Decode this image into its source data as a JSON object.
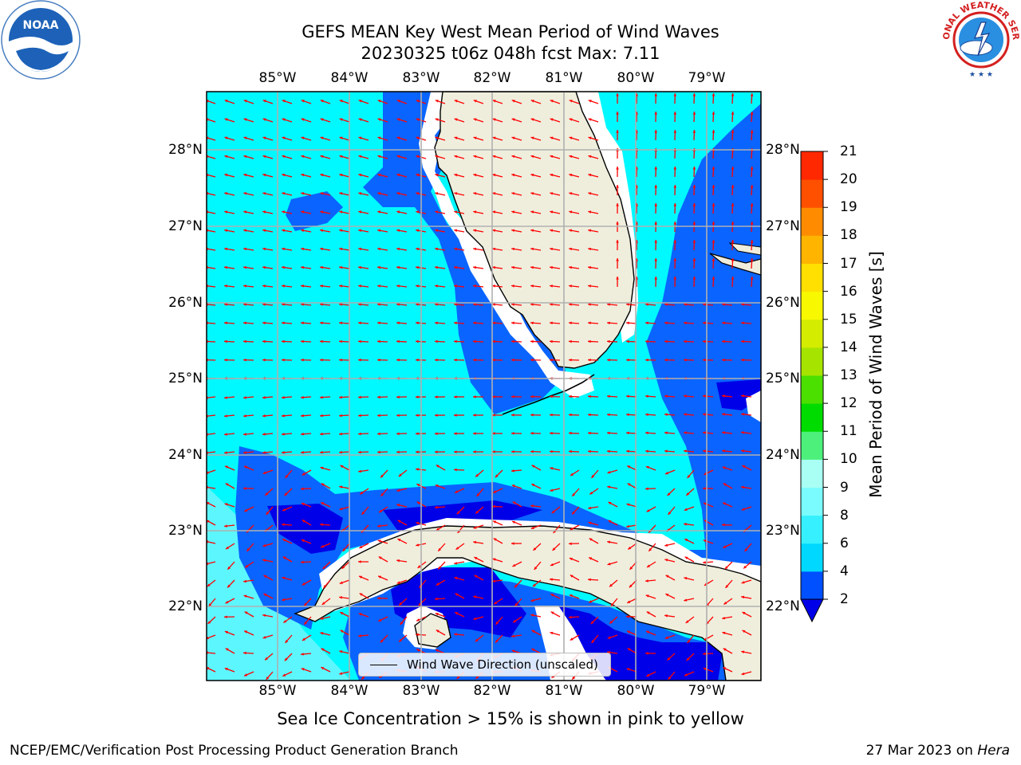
{
  "title": {
    "line1": "GEFS MEAN Key West Mean Period of Wind Waves",
    "line2": "20230325 t06z 048h fcst   Max: 7.11"
  },
  "axes": {
    "lon_ticks": [
      "85°W",
      "84°W",
      "83°W",
      "82°W",
      "81°W",
      "80°W",
      "79°W"
    ],
    "lat_ticks": [
      "28°N",
      "27°N",
      "26°N",
      "25°N",
      "24°N",
      "23°N",
      "22°N"
    ]
  },
  "colorbar": {
    "label": "Mean Period of Wind Waves [s]",
    "ticks": [
      "2",
      "4",
      "6",
      "8",
      "9",
      "10",
      "11",
      "12",
      "13",
      "14",
      "15",
      "16",
      "17",
      "18",
      "19",
      "20",
      "21"
    ],
    "colors": [
      "#0050ff",
      "#00d8ff",
      "#36f0ff",
      "#7afcff",
      "#a9fff3",
      "#4cf07a",
      "#00dc00",
      "#4ce000",
      "#a6e400",
      "#d4ec00",
      "#f8f800",
      "#ffe000",
      "#ffb400",
      "#ff8c00",
      "#ff5000",
      "#ff2800"
    ],
    "extend_color": "#0000e8"
  },
  "legend": {
    "label": "Wind Wave Direction (unscaled)"
  },
  "caption": "Sea Ice Concentration > 15% is shown in pink to yellow",
  "footer": {
    "left": "NCEP/EMC/Verification Post Processing Product Generation Branch",
    "right_date": "27 Mar 2023 on ",
    "right_host": "Hera"
  },
  "logos": {
    "noara": "NOAA",
    "nws": "NATIONAL WEATHER SERVICE"
  },
  "colors": {
    "land": "#efeedd",
    "water_cyan": "#00f8ff",
    "water_blue": "#0a64ff",
    "water_deep": "#0000e8",
    "water_light": "#5cf6ff",
    "arrow": "#ff0000",
    "grid": "#b0b0b0"
  }
}
